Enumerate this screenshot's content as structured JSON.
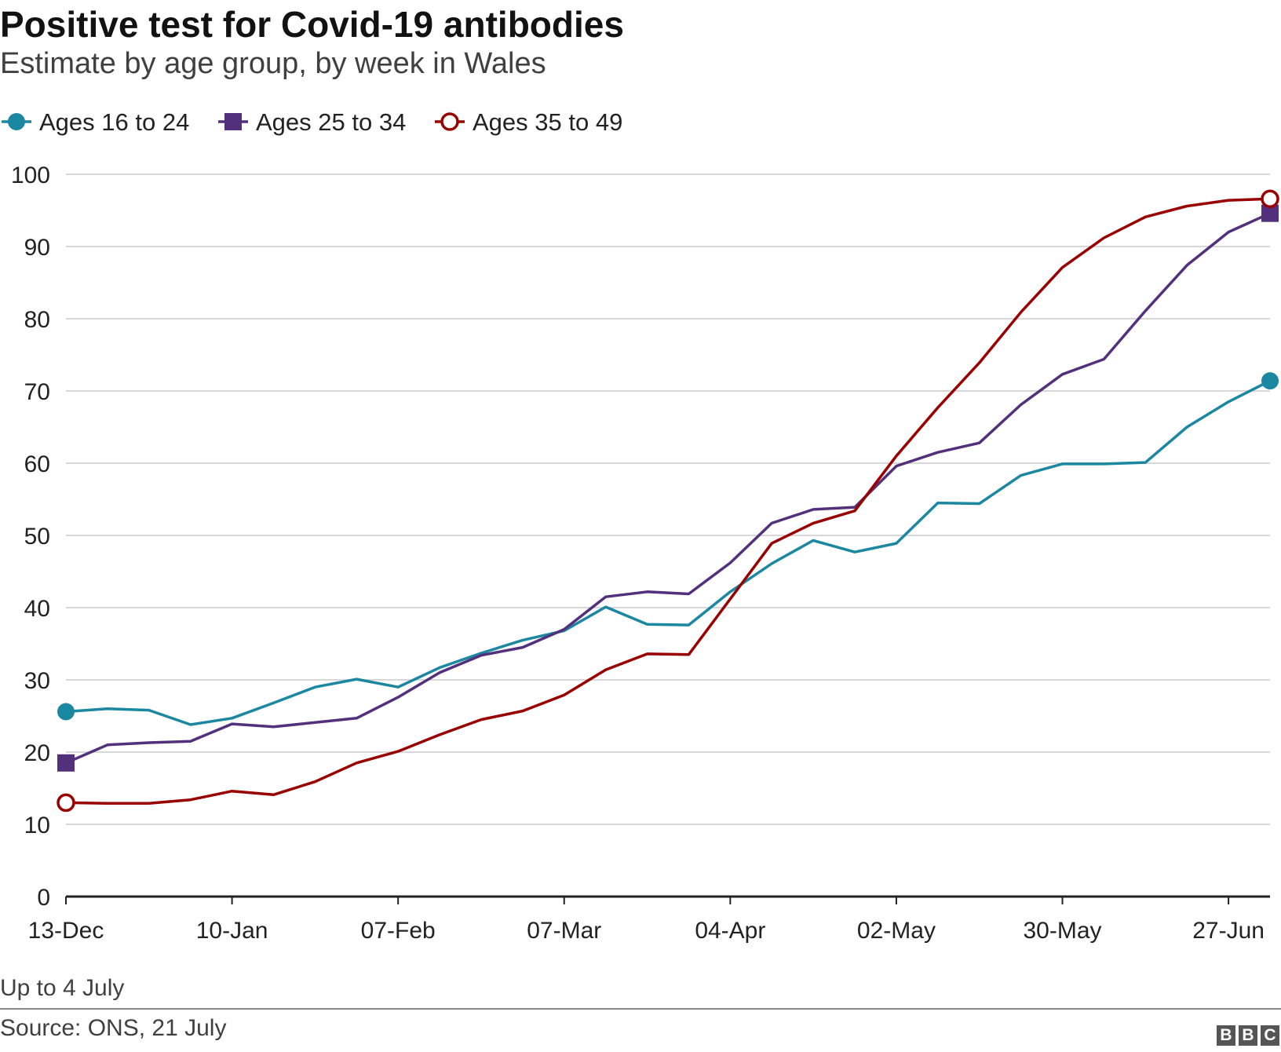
{
  "header": {
    "title": "Positive test for Covid-19 antibodies",
    "subtitle": "Estimate by age group, by week in Wales"
  },
  "footer": {
    "note": "Up to 4 July",
    "source": "Source: ONS, 21 July",
    "logo_letters": [
      "B",
      "B",
      "C"
    ]
  },
  "chart_data": {
    "type": "line",
    "title": "Positive test for Covid-19 antibodies",
    "subtitle": "Estimate by age group, by week in Wales",
    "xlabel": "",
    "ylabel": "",
    "x": [
      "13-Dec",
      "20-Dec",
      "27-Dec",
      "03-Jan",
      "10-Jan",
      "17-Jan",
      "24-Jan",
      "31-Jan",
      "07-Feb",
      "14-Feb",
      "21-Feb",
      "28-Feb",
      "07-Mar",
      "14-Mar",
      "21-Mar",
      "28-Mar",
      "04-Apr",
      "11-Apr",
      "18-Apr",
      "25-Apr",
      "02-May",
      "09-May",
      "16-May",
      "23-May",
      "30-May",
      "06-Jun",
      "13-Jun",
      "20-Jun",
      "27-Jun",
      "04-Jul"
    ],
    "x_tick_labels": [
      "13-Dec",
      "10-Jan",
      "07-Feb",
      "07-Mar",
      "04-Apr",
      "02-May",
      "30-May",
      "27-Jun"
    ],
    "ylim": [
      0,
      100
    ],
    "y_ticks": [
      "0",
      "10",
      "20",
      "30",
      "40",
      "50",
      "60",
      "70",
      "80",
      "90",
      "100"
    ],
    "grid": true,
    "legend_position": "top-left",
    "series": [
      {
        "name": "Ages 16 to 24",
        "color": "#1b87a0",
        "marker": "filled-circle",
        "values": [
          25.6,
          26.0,
          25.8,
          23.8,
          24.7,
          26.8,
          29.0,
          30.1,
          29.0,
          31.7,
          33.7,
          35.5,
          36.8,
          40.1,
          37.7,
          37.6,
          42.2,
          46.1,
          49.3,
          47.7,
          48.9,
          54.5,
          54.4,
          58.3,
          59.9,
          59.9,
          60.1,
          65.0,
          68.5,
          71.4
        ]
      },
      {
        "name": "Ages 25 to 34",
        "color": "#53307b",
        "marker": "filled-square",
        "values": [
          18.5,
          21.0,
          21.3,
          21.5,
          23.9,
          23.5,
          24.1,
          24.7,
          27.6,
          31.0,
          33.4,
          34.5,
          37.0,
          41.5,
          42.2,
          41.9,
          46.2,
          51.7,
          53.6,
          53.9,
          59.6,
          61.5,
          62.8,
          68.1,
          72.3,
          74.4,
          81.1,
          87.4,
          92.0,
          94.6
        ]
      },
      {
        "name": "Ages 35 to 49",
        "color": "#990000",
        "marker": "open-circle",
        "values": [
          13.0,
          12.9,
          12.9,
          13.4,
          14.6,
          14.1,
          15.9,
          18.5,
          20.1,
          22.4,
          24.5,
          25.7,
          27.9,
          31.4,
          33.6,
          33.5,
          41.2,
          48.9,
          51.7,
          53.4,
          61.0,
          67.7,
          73.9,
          80.9,
          87.1,
          91.2,
          94.1,
          95.6,
          96.4,
          96.6
        ]
      }
    ]
  }
}
